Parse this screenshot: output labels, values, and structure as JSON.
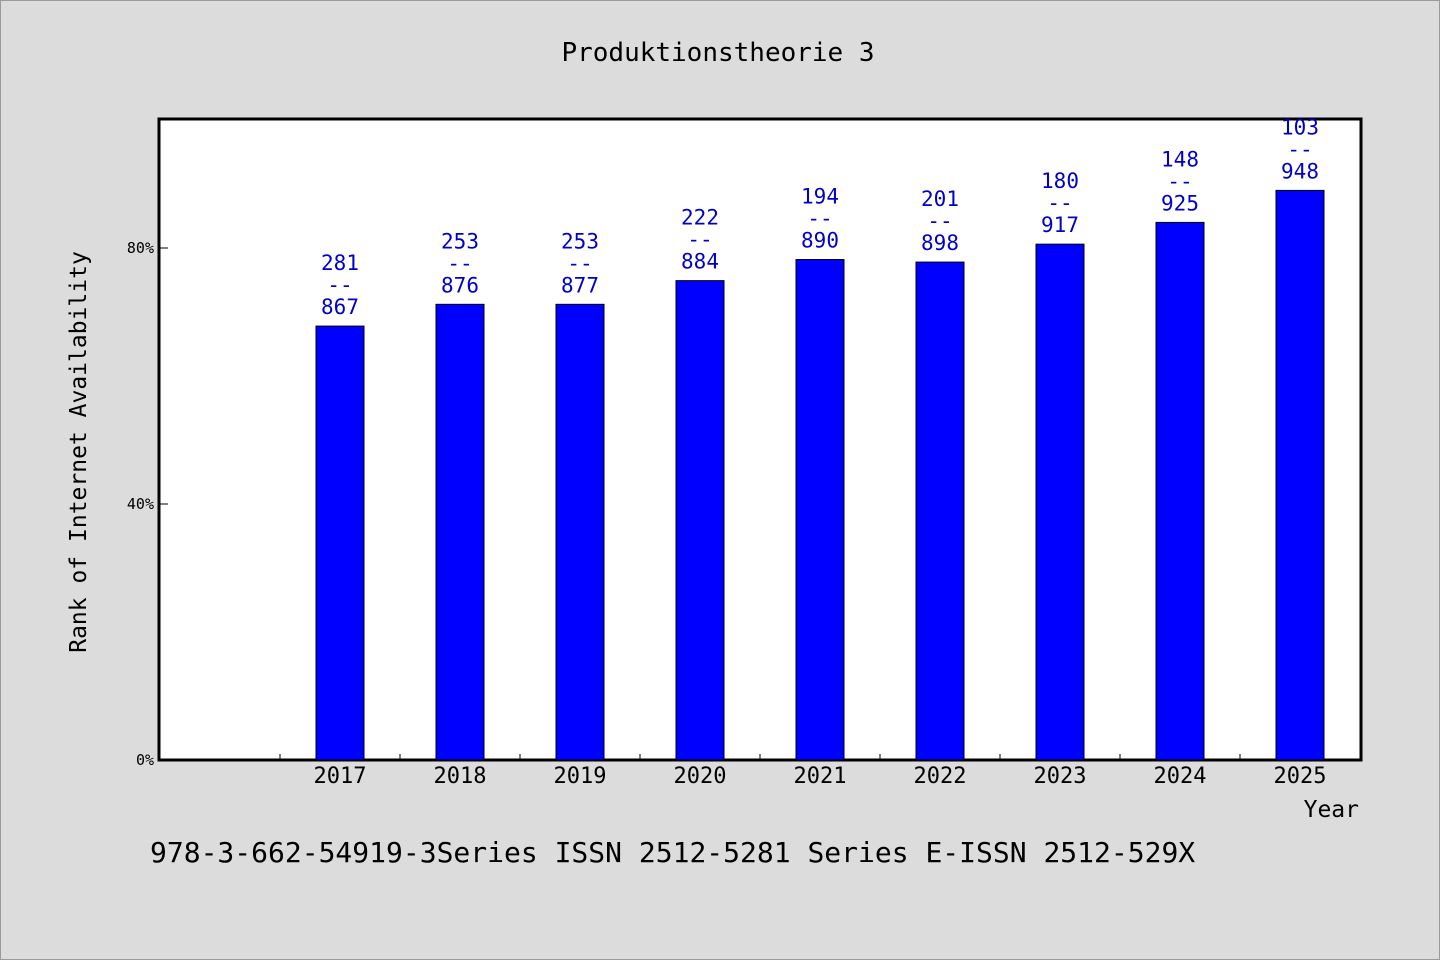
{
  "chart_data": {
    "type": "bar",
    "title": "Produktionstheorie 3",
    "xlabel": "Year",
    "ylabel": "Rank of Internet Availability",
    "categories": [
      "2017",
      "2018",
      "2019",
      "2020",
      "2021",
      "2022",
      "2023",
      "2024",
      "2025"
    ],
    "values": [
      67.8,
      71.2,
      71.2,
      74.9,
      78.2,
      77.8,
      80.6,
      84.0,
      89.0
    ],
    "data_labels": [
      [
        "281",
        "--",
        "867"
      ],
      [
        "253",
        "--",
        "876"
      ],
      [
        "253",
        "--",
        "877"
      ],
      [
        "222",
        "--",
        "884"
      ],
      [
        "194",
        "--",
        "890"
      ],
      [
        "201",
        "--",
        "898"
      ],
      [
        "180",
        "--",
        "917"
      ],
      [
        "148",
        "--",
        "925"
      ],
      [
        "103",
        "--",
        "948"
      ]
    ],
    "ylim": [
      0,
      100
    ],
    "yticks": [
      0,
      40,
      80
    ],
    "ytick_labels": [
      "0%",
      "40%",
      "80%"
    ],
    "grid": false,
    "bar_color": "#0000ff",
    "label_color": "#0000cc"
  },
  "footer": {
    "text": "978-3-662-54919-3Series ISSN 2512-5281 Series E-ISSN 2512-529X"
  }
}
